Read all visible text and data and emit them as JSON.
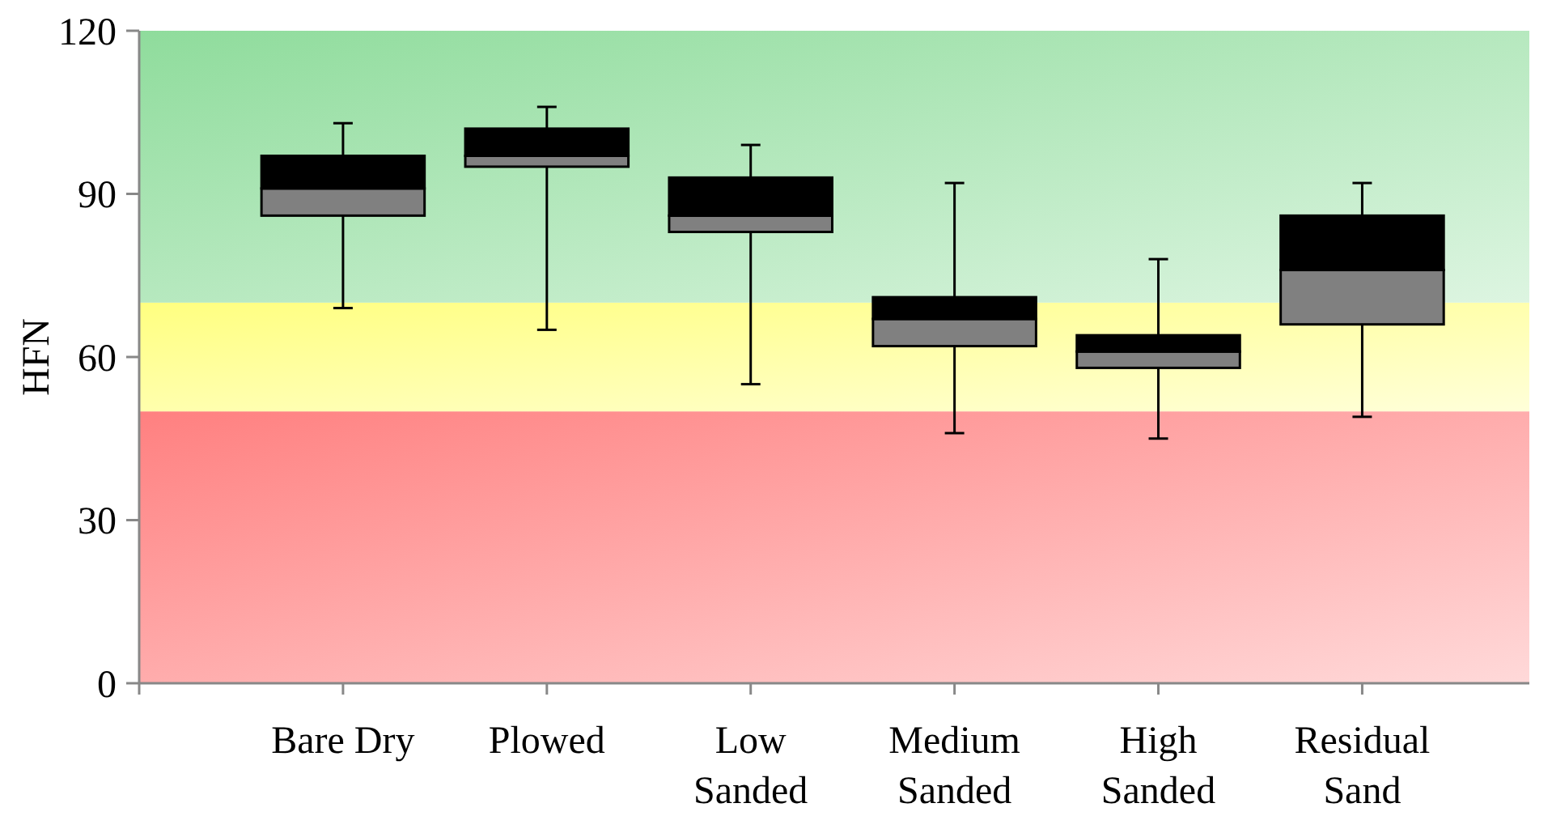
{
  "chart_data": {
    "type": "box",
    "ylabel": "HFN",
    "categories": [
      "Bare Dry",
      "Plowed",
      "Low Sanded",
      "Medium Sanded",
      "High Sanded",
      "Residual Sand"
    ],
    "series": [
      {
        "color": "#808080",
        "boxes": [
          {
            "low": 69,
            "q1": 86,
            "median": 91,
            "q3": 97,
            "high": 103
          },
          {
            "low": 65,
            "q1": 95,
            "median": 97,
            "q3": 102,
            "high": 106
          },
          {
            "low": 55,
            "q1": 83,
            "median": 86,
            "q3": 93,
            "high": 99
          },
          {
            "low": 46,
            "q1": 62,
            "median": 67,
            "q3": 71,
            "high": 92
          },
          {
            "low": 45,
            "q1": 58,
            "median": 61,
            "q3": 64,
            "high": 78
          },
          {
            "low": 49,
            "q1": 66,
            "median": 76,
            "q3": 86,
            "high": 92
          }
        ]
      }
    ],
    "ylim": [
      0,
      120
    ],
    "yticks": [
      0,
      30,
      60,
      90,
      120
    ],
    "grid": false,
    "bands": [
      {
        "axis": "y",
        "from": 0,
        "to": 50,
        "color": "#ff8080"
      },
      {
        "axis": "y",
        "from": 50,
        "to": 70,
        "color": "#ffff80"
      },
      {
        "axis": "y",
        "from": 70,
        "to": 120,
        "color": "#8fdc9c"
      }
    ]
  }
}
